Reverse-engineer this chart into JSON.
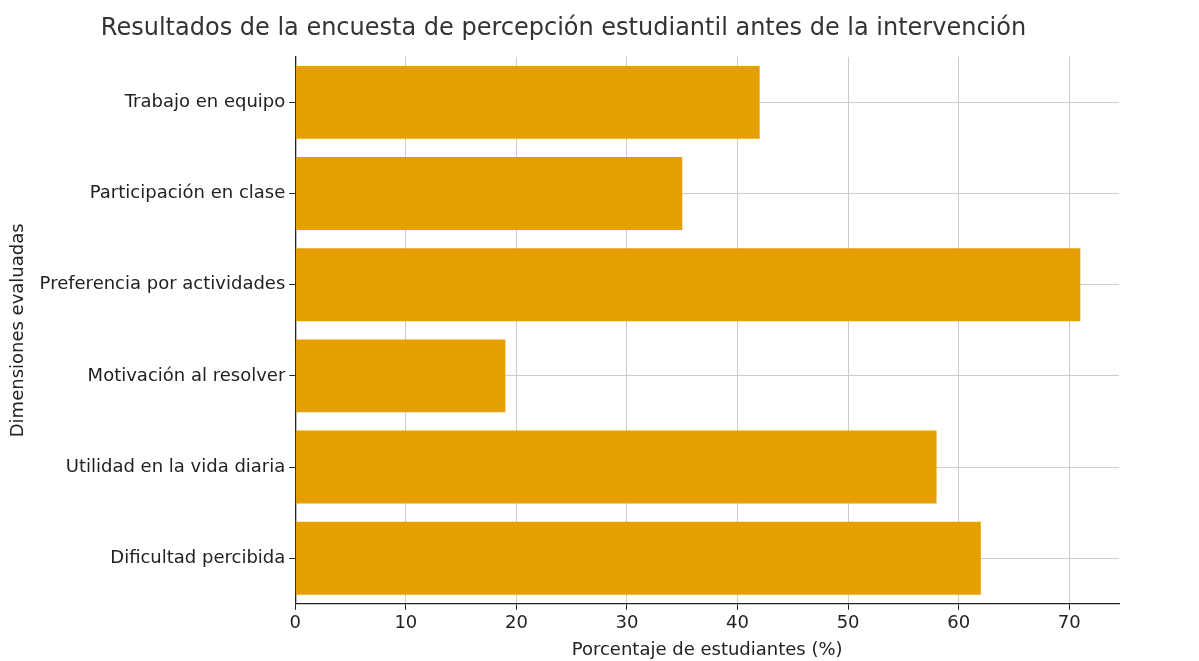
{
  "chart_data": {
    "type": "bar",
    "orientation": "horizontal",
    "title": "Resultados de la encuesta de percepción estudiantil antes de la intervención",
    "xlabel": "Porcentaje de estudiantes (%)",
    "ylabel": "Dimensiones evaluadas",
    "categories": [
      "Trabajo en equipo",
      "Participación en clase",
      "Preferencia por actividades",
      "Motivación al resolver",
      "Utilidad en la vida diaria",
      "Dificultad percibida"
    ],
    "values": [
      42,
      35,
      71,
      19,
      58,
      62
    ],
    "color": "#e69f00",
    "xlim": [
      0,
      74.5
    ],
    "xticks": [
      0,
      10,
      20,
      30,
      40,
      50,
      60,
      70
    ],
    "grid": true
  }
}
